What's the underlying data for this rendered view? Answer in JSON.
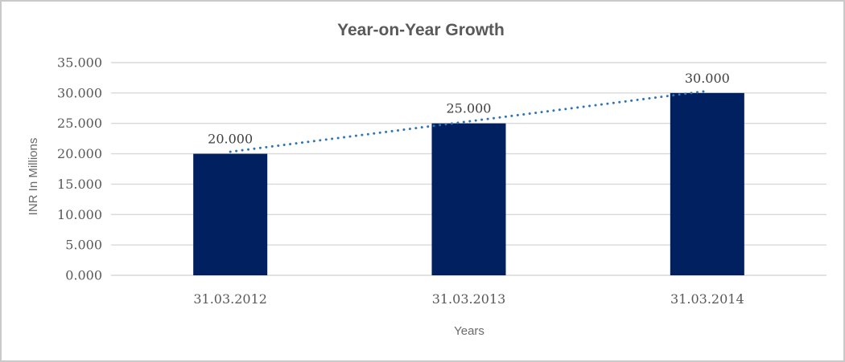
{
  "window": {
    "background": "#ffffff",
    "border_color": "#c9c9c9"
  },
  "chart_data": {
    "type": "bar",
    "title": "Year-on-Year Growth",
    "xlabel": "Years",
    "ylabel": "INR In Millions",
    "categories": [
      "31.03.2012",
      "31.03.2013",
      "31.03.2014"
    ],
    "values": [
      20,
      25,
      30
    ],
    "data_labels": [
      "20.000",
      "25.000",
      "30.000"
    ],
    "y_tick_values": [
      0,
      5,
      10,
      15,
      20,
      25,
      30,
      35
    ],
    "y_tick_labels": [
      "0.000",
      "5.000",
      "10.000",
      "15.000",
      "20.000",
      "25.000",
      "30.000",
      "35.000"
    ],
    "ylim": [
      0,
      35
    ],
    "grid": "horizontal",
    "legend": "none",
    "trendline": {
      "type": "linear",
      "style": "dotted",
      "from_value": 20,
      "to_value": 30
    },
    "colors": {
      "bar": "#002060",
      "trendline": "#2e75b6",
      "gridline": "#d9d9d9",
      "axis_text": "#595959",
      "title_text": "#595959",
      "axis_title_text": "#696969",
      "data_label_text": "#404040"
    }
  }
}
